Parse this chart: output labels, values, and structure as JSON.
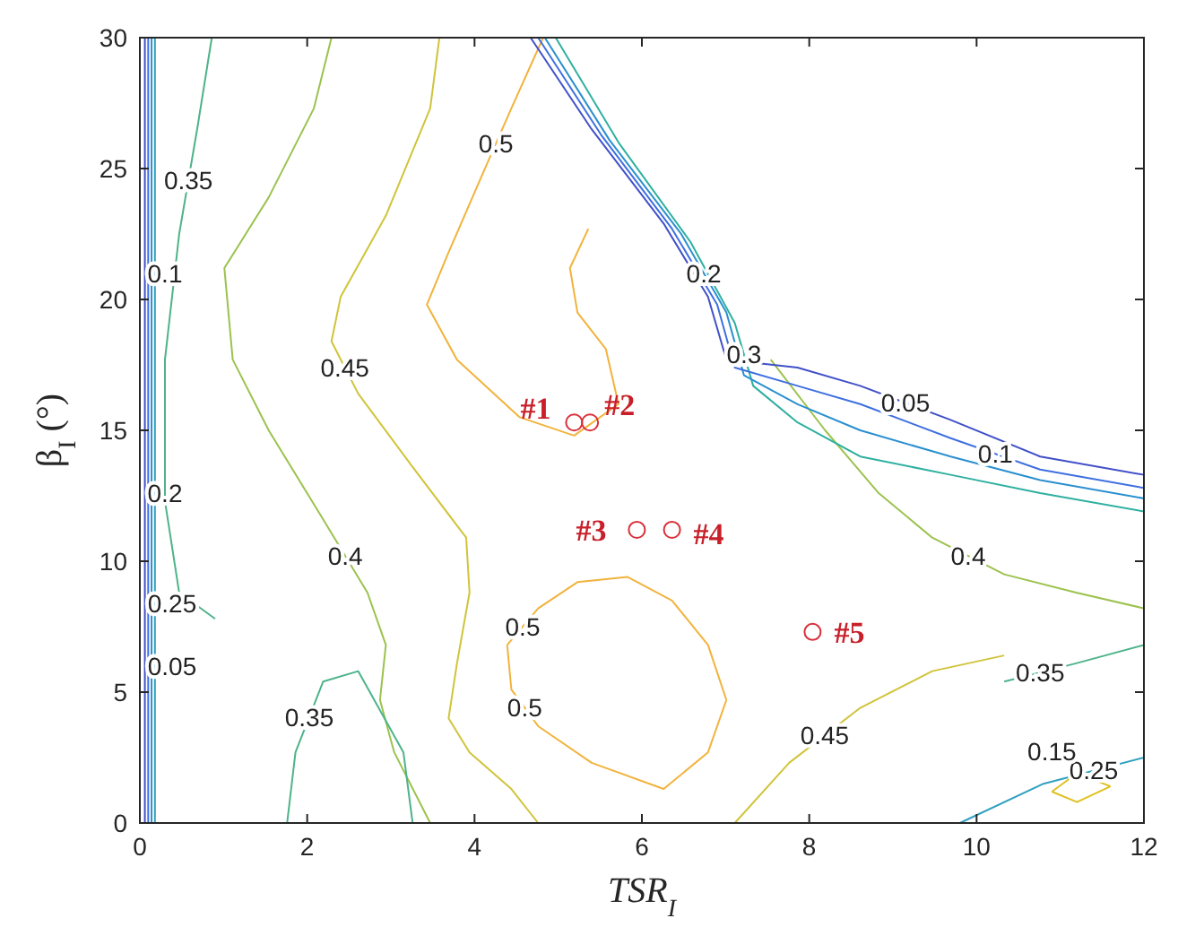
{
  "chart_data": {
    "type": "line",
    "xlabel": "TSR$_{I}$",
    "ylabel": "β$_{I}$ (°)",
    "xlim": [
      0,
      12
    ],
    "xticks": [
      0,
      2,
      4,
      6,
      8,
      10,
      12
    ],
    "ylim": [
      0,
      30
    ],
    "yticks": [
      0,
      5,
      10,
      15,
      20,
      25,
      30
    ],
    "grid": false,
    "marker": "none",
    "line_style": "solid",
    "series": [
      {
        "name": "0.5",
        "color": "#f2b33d",
        "x": [
          4.82,
          4.44,
          4.07,
          3.69,
          3.43,
          3.79,
          4.54,
          5.19,
          5.72,
          5.57,
          5.23,
          5.14,
          5.36,
          null,
          4.39,
          4.76,
          5.23,
          5.83,
          6.36,
          6.79,
          7.01,
          null,
          4.39,
          4.44,
          4.76,
          5.4,
          6.26,
          6.79,
          7.01
        ],
        "values": [
          30,
          27.3,
          24.6,
          21.8,
          19.8,
          17.7,
          15.5,
          14.8,
          16,
          18.1,
          19.5,
          21.2,
          22.7,
          null,
          6.8,
          8.2,
          9.2,
          9.4,
          8.5,
          6.8,
          4.7,
          null,
          6.8,
          5.1,
          3.7,
          2.3,
          1.3,
          2.7,
          4.7
        ]
      },
      {
        "name": "0.45",
        "color": "#d0c43a",
        "x": [
          3.58,
          3.47,
          2.94,
          2.4,
          2.29,
          2.61,
          3.26,
          3.9,
          3.94,
          3.79,
          3.69,
          3.94,
          4.44,
          4.76,
          null,
          7.11,
          7.76,
          8.61,
          9.47,
          10.33
        ],
        "values": [
          30,
          27.3,
          23.2,
          20.1,
          18.4,
          16.4,
          13.6,
          10.9,
          8.8,
          6.1,
          4,
          2.7,
          1.3,
          0,
          null,
          0,
          2.3,
          4.4,
          5.8,
          6.4
        ]
      },
      {
        "name": "0.4",
        "color": "#9cc24e",
        "x": [
          2.29,
          2.08,
          1.54,
          1.01,
          1.11,
          1.54,
          2.19,
          2.72,
          2.94,
          2.87,
          3.04,
          3.47,
          null,
          7.54,
          8.19,
          8.83,
          9.47,
          10.33,
          11.19,
          12
        ],
        "values": [
          30,
          27.3,
          23.9,
          21.2,
          17.7,
          15,
          11.6,
          8.8,
          6.8,
          4.7,
          2.7,
          0,
          null,
          17.7,
          15,
          12.6,
          10.9,
          9.5,
          8.8,
          8.2
        ]
      },
      {
        "name": "0.35",
        "color": "#4db38a",
        "x": [
          0.86,
          0.69,
          0.47,
          0.3,
          0.3,
          0.47,
          0.9,
          null,
          1.76,
          1.86,
          2.19,
          2.61,
          3.15,
          3.26,
          null,
          10.33,
          11.19,
          12
        ],
        "values": [
          30,
          26.6,
          22.5,
          17.7,
          12.3,
          8.8,
          7.8,
          null,
          0,
          2.7,
          5.4,
          5.8,
          2.7,
          0,
          null,
          5.4,
          6.1,
          6.8
        ]
      },
      {
        "name": "0.3",
        "color": "#2fb0a0",
        "x": [
          4.97,
          5.72,
          6.58,
          7.11,
          7.33,
          7.86,
          8.61,
          9.69,
          10.76,
          12
        ],
        "values": [
          30,
          26,
          22.2,
          19.1,
          16.7,
          15.3,
          14,
          13.3,
          12.6,
          11.9
        ]
      },
      {
        "name": "0.25",
        "color": "#30a0c0",
        "x": [
          0.18,
          0.18,
          null,
          9.8,
          10.8,
          12
        ],
        "values": [
          0,
          30,
          null,
          0,
          1.5,
          2.5
        ]
      },
      {
        "name": "0.2",
        "color": "#2a8fd0",
        "x": [
          4.84,
          5.61,
          6.47,
          7.01,
          7.22,
          7.86,
          8.61,
          9.69,
          10.76,
          12,
          null,
          0.14,
          0.14
        ],
        "values": [
          30,
          26.1,
          22.5,
          19.5,
          17.1,
          16,
          15,
          14,
          13.1,
          12.4,
          null,
          0,
          30
        ]
      },
      {
        "name": "0.15",
        "color": "#e0c020",
        "x": [
          10.9,
          11.2,
          11.6,
          null,
          10.9,
          11.2,
          11.6
        ],
        "values": [
          1.2,
          1.9,
          1.4,
          null,
          1.2,
          0.8,
          1.4
        ]
      },
      {
        "name": "0.1",
        "color": "#3e6fe0",
        "x": [
          4.76,
          5.51,
          6.36,
          6.9,
          7.11,
          7.86,
          8.61,
          9.69,
          10.76,
          12,
          null,
          0.1,
          0.1
        ],
        "values": [
          30,
          26.3,
          22.7,
          19.8,
          17.4,
          16.7,
          16,
          14.7,
          13.5,
          12.8,
          null,
          0,
          30
        ]
      },
      {
        "name": "0.05",
        "color": "#4050c8",
        "x": [
          4.67,
          5.4,
          6.26,
          6.79,
          7.01,
          7.86,
          8.61,
          9.69,
          10.76,
          12,
          null,
          0.06,
          0.06
        ],
        "values": [
          30,
          26.5,
          22.9,
          20.1,
          17.7,
          17.4,
          16.7,
          15.4,
          14,
          13.3,
          null,
          0,
          30
        ]
      },
      {
        "type": "scatter",
        "marker": "circle",
        "color": "#d9303a",
        "x": [
          5.19,
          5.38,
          5.94,
          6.36,
          8.04
        ],
        "values": [
          15.3,
          15.3,
          11.2,
          11.2,
          7.3
        ]
      }
    ],
    "annotations": [
      "#1",
      "#2",
      "#3",
      "#4",
      "#5"
    ]
  }
}
